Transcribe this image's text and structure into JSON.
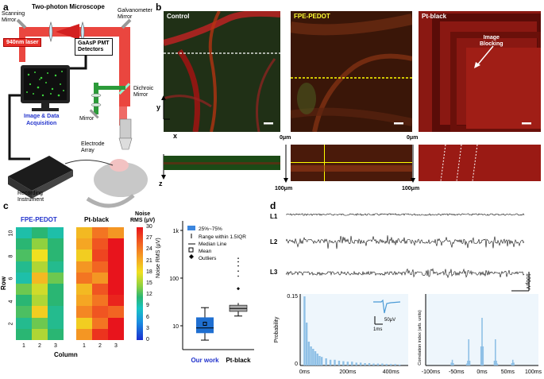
{
  "panel_a": {
    "letter": "a",
    "title": "Two-photon Microscope",
    "scanning_mirror": "Scanning\nMirror",
    "galvanometer_mirror": "Galvanometer\nMirror",
    "laser": "940nm laser",
    "detector": "GaAsP PMT\nDetectors",
    "dichroic_mirror": "Dichroic\nMirror",
    "mirror": "Mirror",
    "acquisition": "Image & Data\nAcquisition",
    "electrode_array": "Electrode\nArray",
    "recording_instrument": "Recording\nInstrument"
  },
  "panel_b": {
    "letter": "b",
    "images": [
      {
        "label": "Control",
        "label_color": "#ffffff",
        "scan_line_color": "#ffffff"
      },
      {
        "label": "FPE-PEDOT",
        "label_color": "#ffff33",
        "scan_line_color": "#ffff00"
      },
      {
        "label": "Pt-black",
        "label_color": "#ffffff",
        "annotation": "Image\nBlocking"
      }
    ],
    "axis_y": "y",
    "axis_x": "x",
    "axis_z": "z",
    "depth_top": "0μm",
    "depth_bottom": "100μm"
  },
  "panel_c": {
    "letter": "c",
    "heatmaps": [
      {
        "title": "FPE-PEDOT",
        "title_color": "#2233cc",
        "values": [
          [
            10,
            12,
            10
          ],
          [
            12,
            15,
            12
          ],
          [
            13,
            18,
            12
          ],
          [
            11,
            16,
            11
          ],
          [
            10,
            20,
            14
          ],
          [
            14,
            17,
            12
          ],
          [
            12,
            16,
            12
          ],
          [
            13,
            19,
            11
          ],
          [
            11,
            14,
            11
          ],
          [
            12,
            16,
            12
          ]
        ]
      },
      {
        "title": "Pt-black",
        "title_color": "#000000",
        "values": [
          [
            20,
            24,
            22
          ],
          [
            21,
            26,
            30
          ],
          [
            19,
            27,
            30
          ],
          [
            22,
            25,
            30
          ],
          [
            24,
            22,
            30
          ],
          [
            20,
            26,
            30
          ],
          [
            21,
            24,
            29
          ],
          [
            23,
            26,
            25
          ],
          [
            19,
            24,
            30
          ],
          [
            22,
            28,
            30
          ]
        ]
      }
    ],
    "ylabel": "Row",
    "xlabel": "Column",
    "row_ticks": [
      "10",
      "8",
      "6",
      "4",
      "2"
    ],
    "column_ticks": [
      "1",
      "2",
      "3"
    ],
    "colorbar_title": "Noise\nRMS (μV)",
    "colorbar_ticks": [
      "30",
      "27",
      "24",
      "21",
      "18",
      "15",
      "12",
      "9",
      "6",
      "3",
      "0"
    ],
    "boxplot": {
      "ylabel": "Noise RMS (μV)",
      "yticks": [
        "1k",
        "100",
        "10"
      ],
      "legend": [
        "25%~75%",
        "Range within 1.5IQR",
        "Median Line",
        "Mean",
        "Outliers"
      ],
      "categories": [
        {
          "label": "Our work",
          "color": "#1f6fd1",
          "label_color": "#2233cc"
        },
        {
          "label": "Pt-black",
          "color": "#aaaaaa",
          "label_color": "#000000"
        }
      ]
    }
  },
  "panel_d": {
    "letter": "d",
    "trace_labels": [
      "L1",
      "L2",
      "L3"
    ],
    "scale_voltage": "100μV",
    "scale_time": "1s",
    "inset_scale_voltage": "50μV",
    "inset_scale_time": "1ms"
  },
  "chart_data": [
    {
      "type": "bar",
      "ylabel": "Probability",
      "xticks": [
        "0ms",
        "200ms",
        "400ms"
      ],
      "ytick_max": "0.15",
      "x": [
        0,
        10,
        20,
        30,
        40,
        50,
        60,
        70,
        80,
        100,
        120,
        140,
        160,
        180,
        200,
        220,
        240,
        260,
        280,
        300,
        320,
        340,
        360,
        380,
        400,
        420,
        440
      ],
      "values": [
        0.145,
        0.09,
        0.05,
        0.04,
        0.035,
        0.03,
        0.025,
        0.02,
        0.018,
        0.015,
        0.012,
        0.012,
        0.01,
        0.009,
        0.008,
        0.008,
        0.006,
        0.006,
        0.005,
        0.005,
        0.004,
        0.004,
        0.004,
        0.003,
        0.003,
        0.003,
        0.002
      ],
      "xlim": [
        -20,
        480
      ],
      "ylim": [
        0,
        0.15
      ]
    },
    {
      "type": "bar",
      "ylabel": "Correlation index (arb. units)",
      "xticks": [
        "-100ms",
        "-50ms",
        "0ms",
        "50ms",
        "100ms"
      ],
      "x": [
        -60,
        -58,
        -56,
        -30,
        -28,
        -26,
        -24,
        -2,
        0,
        2,
        24,
        26,
        28,
        30,
        58,
        60,
        62
      ],
      "values": [
        0.06,
        0.12,
        0.05,
        0.04,
        0.1,
        0.55,
        0.1,
        0.4,
        1.0,
        0.4,
        0.1,
        0.55,
        0.1,
        0.04,
        0.05,
        0.12,
        0.06
      ],
      "xlim": [
        -110,
        110
      ],
      "ylim": [
        0,
        1
      ]
    }
  ]
}
